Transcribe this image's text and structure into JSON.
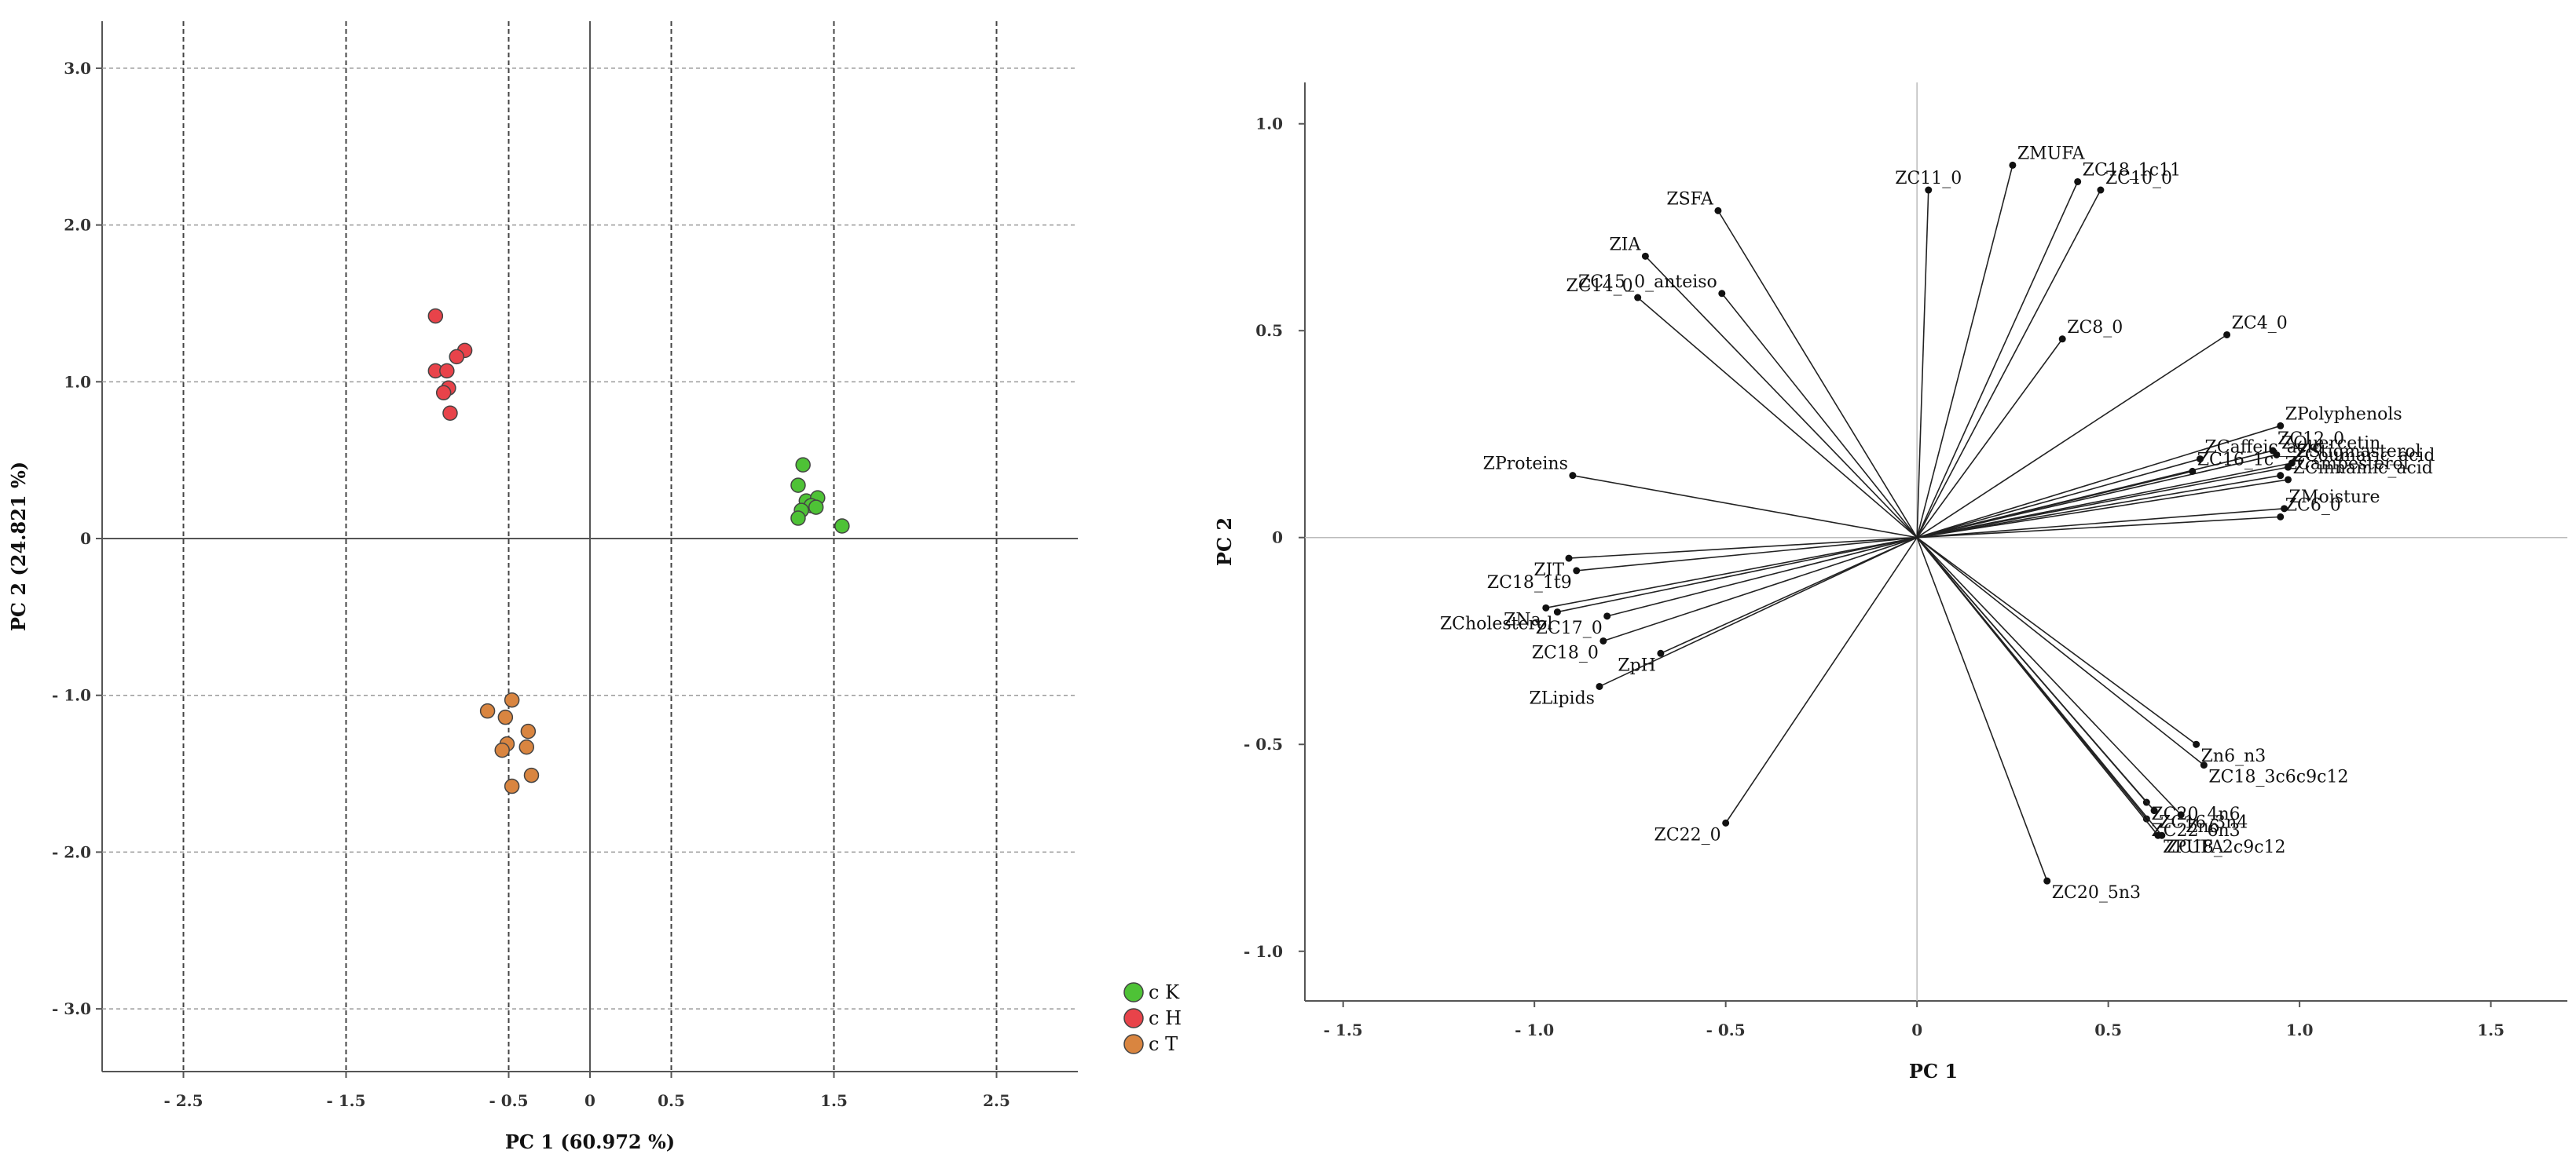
{
  "chart_data": [
    {
      "type": "scatter",
      "title": "",
      "xlabel": "PC 1 (60.972 %)",
      "ylabel": "PC 2 (24.821 %)",
      "xlim": [
        -3.0,
        3.0
      ],
      "ylim": [
        -3.4,
        3.3
      ],
      "x_ticks": [
        -2.5,
        -1.5,
        -0.5,
        0.5,
        1.5,
        2.5
      ],
      "x_tick_labels": [
        "- 2.5",
        "- 1.5",
        "- 0.5",
        "0.5",
        "1.5",
        "2.5"
      ],
      "y_ticks": [
        3.0,
        2.0,
        1.0,
        0.0,
        -1.0,
        -2.0,
        -3.0
      ],
      "y_tick_labels": [
        "3.0",
        "2.0",
        "1.0",
        "0",
        "- 1.0",
        "- 2.0",
        "- 3.0"
      ],
      "reference_lines": {
        "x": 0,
        "y": 0
      },
      "legend_position": "bottom-right",
      "series": [
        {
          "name": "c K",
          "color": "#4ec236",
          "points": [
            [
              1.31,
              0.47
            ],
            [
              1.28,
              0.34
            ],
            [
              1.33,
              0.24
            ],
            [
              1.4,
              0.26
            ],
            [
              1.36,
              0.21
            ],
            [
              1.3,
              0.18
            ],
            [
              1.39,
              0.2
            ],
            [
              1.28,
              0.13
            ],
            [
              1.55,
              0.08
            ]
          ]
        },
        {
          "name": "c H",
          "color": "#e8434a",
          "points": [
            [
              -0.95,
              1.42
            ],
            [
              -0.77,
              1.2
            ],
            [
              -0.82,
              1.16
            ],
            [
              -0.95,
              1.07
            ],
            [
              -0.88,
              1.07
            ],
            [
              -0.87,
              0.96
            ],
            [
              -0.9,
              0.93
            ],
            [
              -0.86,
              0.8
            ]
          ]
        },
        {
          "name": "c T",
          "color": "#d98540",
          "points": [
            [
              -0.63,
              -1.1
            ],
            [
              -0.48,
              -1.03
            ],
            [
              -0.52,
              -1.14
            ],
            [
              -0.38,
              -1.23
            ],
            [
              -0.51,
              -1.31
            ],
            [
              -0.54,
              -1.35
            ],
            [
              -0.39,
              -1.33
            ],
            [
              -0.36,
              -1.51
            ],
            [
              -0.48,
              -1.58
            ]
          ]
        }
      ]
    },
    {
      "type": "scatter",
      "title": "",
      "xlabel": "PC 1",
      "ylabel": "PC 2",
      "xlim": [
        -1.6,
        1.7
      ],
      "ylim": [
        -1.12,
        1.1
      ],
      "x_ticks": [
        -1.5,
        -1.0,
        -0.5,
        0,
        0.5,
        1.0,
        1.5
      ],
      "x_tick_labels": [
        "- 1.5",
        "- 1.0",
        "- 0.5",
        "0",
        "0.5",
        "1.0",
        "1.5"
      ],
      "y_ticks": [
        1.0,
        0.5,
        0,
        -0.5,
        -1.0
      ],
      "y_tick_labels": [
        "1.0",
        "0.5",
        "0",
        "- 0.5",
        "- 1.0"
      ],
      "vectors_from_origin": true,
      "vectors": [
        {
          "name": "ZMUFA",
          "x": 0.25,
          "y": 0.9
        },
        {
          "name": "ZC11_0",
          "x": 0.03,
          "y": 0.84
        },
        {
          "name": "ZC18_1c11",
          "x": 0.42,
          "y": 0.86
        },
        {
          "name": "ZC10_0",
          "x": 0.48,
          "y": 0.84
        },
        {
          "name": "ZSFA",
          "x": -0.52,
          "y": 0.79
        },
        {
          "name": "ZIA",
          "x": -0.71,
          "y": 0.68
        },
        {
          "name": "ZC15_0_anteiso",
          "x": -0.51,
          "y": 0.59
        },
        {
          "name": "ZC14_0",
          "x": -0.73,
          "y": 0.58
        },
        {
          "name": "ZC8_0",
          "x": 0.38,
          "y": 0.48
        },
        {
          "name": "ZC4_0",
          "x": 0.81,
          "y": 0.49
        },
        {
          "name": "ZC12_0",
          "x": 0.93,
          "y": 0.21
        },
        {
          "name": "ZPolyphenols",
          "x": 0.95,
          "y": 0.27
        },
        {
          "name": "ZCaffeic_acid",
          "x": 0.74,
          "y": 0.19
        },
        {
          "name": "ZQuercetin",
          "x": 0.94,
          "y": 0.2
        },
        {
          "name": "ZStigmasterol",
          "x": 0.98,
          "y": 0.18
        },
        {
          "name": "ZC16_1c",
          "x": 0.72,
          "y": 0.16
        },
        {
          "name": "ZCoumaric_acid",
          "x": 0.97,
          "y": 0.17
        },
        {
          "name": "ZCampesterol",
          "x": 0.95,
          "y": 0.15
        },
        {
          "name": "ZCinnamic_acid",
          "x": 0.97,
          "y": 0.14
        },
        {
          "name": "ZMoisture",
          "x": 0.96,
          "y": 0.07
        },
        {
          "name": "ZC6_0",
          "x": 0.95,
          "y": 0.05
        },
        {
          "name": "ZProteins",
          "x": -0.9,
          "y": 0.15
        },
        {
          "name": "ZIT",
          "x": -0.91,
          "y": -0.05
        },
        {
          "name": "ZC18_1t9",
          "x": -0.89,
          "y": -0.08
        },
        {
          "name": "ZNa",
          "x": -0.97,
          "y": -0.17
        },
        {
          "name": "ZC17_0",
          "x": -0.81,
          "y": -0.19
        },
        {
          "name": "ZCholesterol",
          "x": -0.94,
          "y": -0.18
        },
        {
          "name": "ZpH",
          "x": -0.67,
          "y": -0.28
        },
        {
          "name": "ZC18_0",
          "x": -0.82,
          "y": -0.25
        },
        {
          "name": "ZLipids",
          "x": -0.83,
          "y": -0.36
        },
        {
          "name": "ZC22_0",
          "x": -0.5,
          "y": -0.69
        },
        {
          "name": "Zn6_n3",
          "x": 0.73,
          "y": -0.5
        },
        {
          "name": "ZC18_3c6c9c12",
          "x": 0.75,
          "y": -0.55
        },
        {
          "name": "ZC20_4n6",
          "x": 0.6,
          "y": -0.64
        },
        {
          "name": "ZC16_3n4",
          "x": 0.62,
          "y": -0.66
        },
        {
          "name": "Zn6",
          "x": 0.69,
          "y": -0.67
        },
        {
          "name": "ZC22_6n3",
          "x": 0.6,
          "y": -0.68
        },
        {
          "name": "ZC18_2c9c12",
          "x": 0.64,
          "y": -0.72
        },
        {
          "name": "ZPUFA",
          "x": 0.63,
          "y": -0.72
        },
        {
          "name": "ZC20_5n3",
          "x": 0.34,
          "y": -0.83
        }
      ]
    }
  ]
}
